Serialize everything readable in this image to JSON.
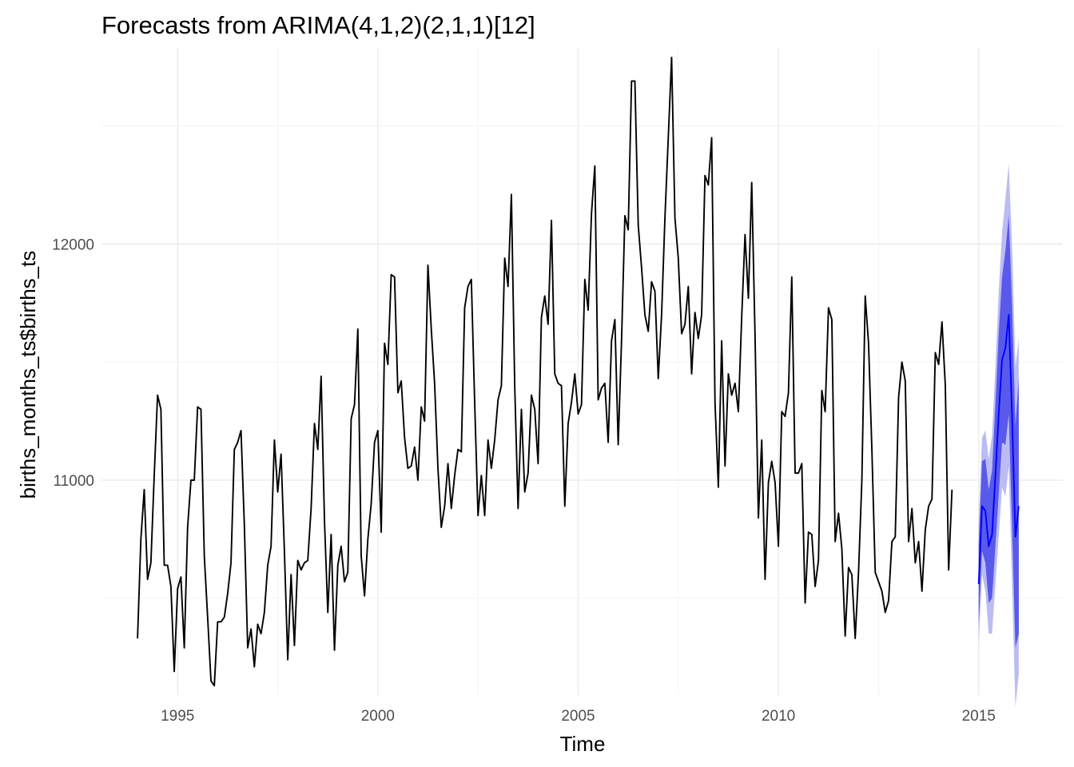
{
  "chart_data": {
    "type": "line",
    "title": "Forecasts from ARIMA(4,1,2)(2,1,1)[12]",
    "xlabel": "Time",
    "ylabel": "births_months_ts$births_ts",
    "xlim": [
      1993.1,
      2017.1
    ],
    "ylim": [
      10090,
      12830
    ],
    "x_ticks": [
      1995,
      2000,
      2005,
      2010,
      2015
    ],
    "y_ticks": [
      11000,
      12000
    ],
    "x_tick_labels": [
      "1995",
      "2000",
      "2005",
      "2010",
      "2015"
    ],
    "y_tick_labels": [
      "11000",
      "12000"
    ],
    "grid": true,
    "legend": "none",
    "history": {
      "start": 1994,
      "frequency": 12,
      "values": [
        10330,
        10750,
        10960,
        10580,
        10650,
        11020,
        11360,
        11300,
        10640,
        10640,
        10550,
        10190,
        10540,
        10590,
        10290,
        10800,
        11000,
        11000,
        11310,
        11300,
        10680,
        10420,
        10150,
        10130,
        10400,
        10400,
        10420,
        10520,
        10650,
        11130,
        11160,
        11210,
        10810,
        10290,
        10370,
        10210,
        10390,
        10350,
        10440,
        10640,
        10720,
        11170,
        10950,
        11110,
        10700,
        10240,
        10600,
        10300,
        10660,
        10620,
        10650,
        10660,
        10880,
        11240,
        11130,
        11440,
        10830,
        10440,
        10770,
        10280,
        10640,
        10720,
        10570,
        10610,
        11260,
        11320,
        11640,
        10680,
        10510,
        10750,
        10900,
        11160,
        11210,
        10780,
        11580,
        11490,
        11870,
        11860,
        11370,
        11420,
        11180,
        11050,
        11060,
        11140,
        11000,
        11310,
        11250,
        11910,
        11640,
        11410,
        11050,
        10800,
        10890,
        11070,
        10880,
        11020,
        11130,
        11120,
        11730,
        11820,
        11850,
        11330,
        10850,
        11020,
        10850,
        11170,
        11050,
        11170,
        11340,
        11400,
        11940,
        11820,
        12210,
        11400,
        10880,
        11300,
        10950,
        11030,
        11360,
        11300,
        11070,
        11690,
        11780,
        11660,
        12100,
        11450,
        11410,
        11400,
        10890,
        11240,
        11330,
        11450,
        11280,
        11320,
        11850,
        11720,
        12130,
        12330,
        11340,
        11390,
        11410,
        11160,
        11590,
        11680,
        11150,
        11590,
        12120,
        12060,
        12690,
        12690,
        12080,
        11900,
        11700,
        11630,
        11840,
        11800,
        11430,
        11700,
        12110,
        12450,
        12790,
        12110,
        11940,
        11620,
        11660,
        11820,
        11450,
        11710,
        11600,
        11700,
        12290,
        12250,
        12450,
        11330,
        10970,
        11590,
        11060,
        11450,
        11360,
        11410,
        11290,
        11690,
        12040,
        11770,
        12260,
        11610,
        10840,
        11170,
        10580,
        10990,
        11080,
        10990,
        10720,
        11290,
        11270,
        11370,
        11860,
        11030,
        11030,
        11070,
        10480,
        10780,
        10770,
        10550,
        10660,
        11380,
        11290,
        11730,
        11680,
        10740,
        10860,
        10710,
        10340,
        10630,
        10600,
        10330,
        10610,
        11000,
        11780,
        11580,
        11130,
        10610,
        10570,
        10530,
        10440,
        10490,
        10740,
        10760,
        11350,
        11500,
        11420,
        10740,
        10880,
        10650,
        10740,
        10530,
        10790,
        10890,
        10920,
        11540,
        11490,
        11670,
        11400,
        10620,
        10960
      ]
    },
    "forecast": {
      "start": 2015,
      "frequency": 12,
      "mean": [
        10560,
        10890,
        10870,
        10720,
        10770,
        11020,
        11280,
        11510,
        11560,
        11700,
        11270,
        10760,
        10890
      ],
      "lo80": [
        10390,
        10700,
        10650,
        10480,
        10500,
        10720,
        10940,
        11160,
        11150,
        11280,
        10800,
        10290,
        10350
      ],
      "hi80": [
        10730,
        11080,
        11090,
        10960,
        11040,
        11320,
        11620,
        11860,
        11970,
        12120,
        11740,
        11230,
        11430
      ],
      "lo95": [
        10300,
        10600,
        10530,
        10350,
        10350,
        10560,
        10760,
        10970,
        10930,
        11060,
        10550,
        10040,
        10180
      ],
      "hi95": [
        10820,
        11180,
        11210,
        11090,
        11190,
        11480,
        11800,
        12050,
        12190,
        12340,
        11990,
        11480,
        11600
      ]
    },
    "colors": {
      "history_line": "#000000",
      "forecast_line": "#0000ff",
      "band_80": "#5959eb",
      "band_95": "#bcbcf4",
      "grid": "#ebebeb",
      "tick_text": "#4d4d4d"
    }
  }
}
